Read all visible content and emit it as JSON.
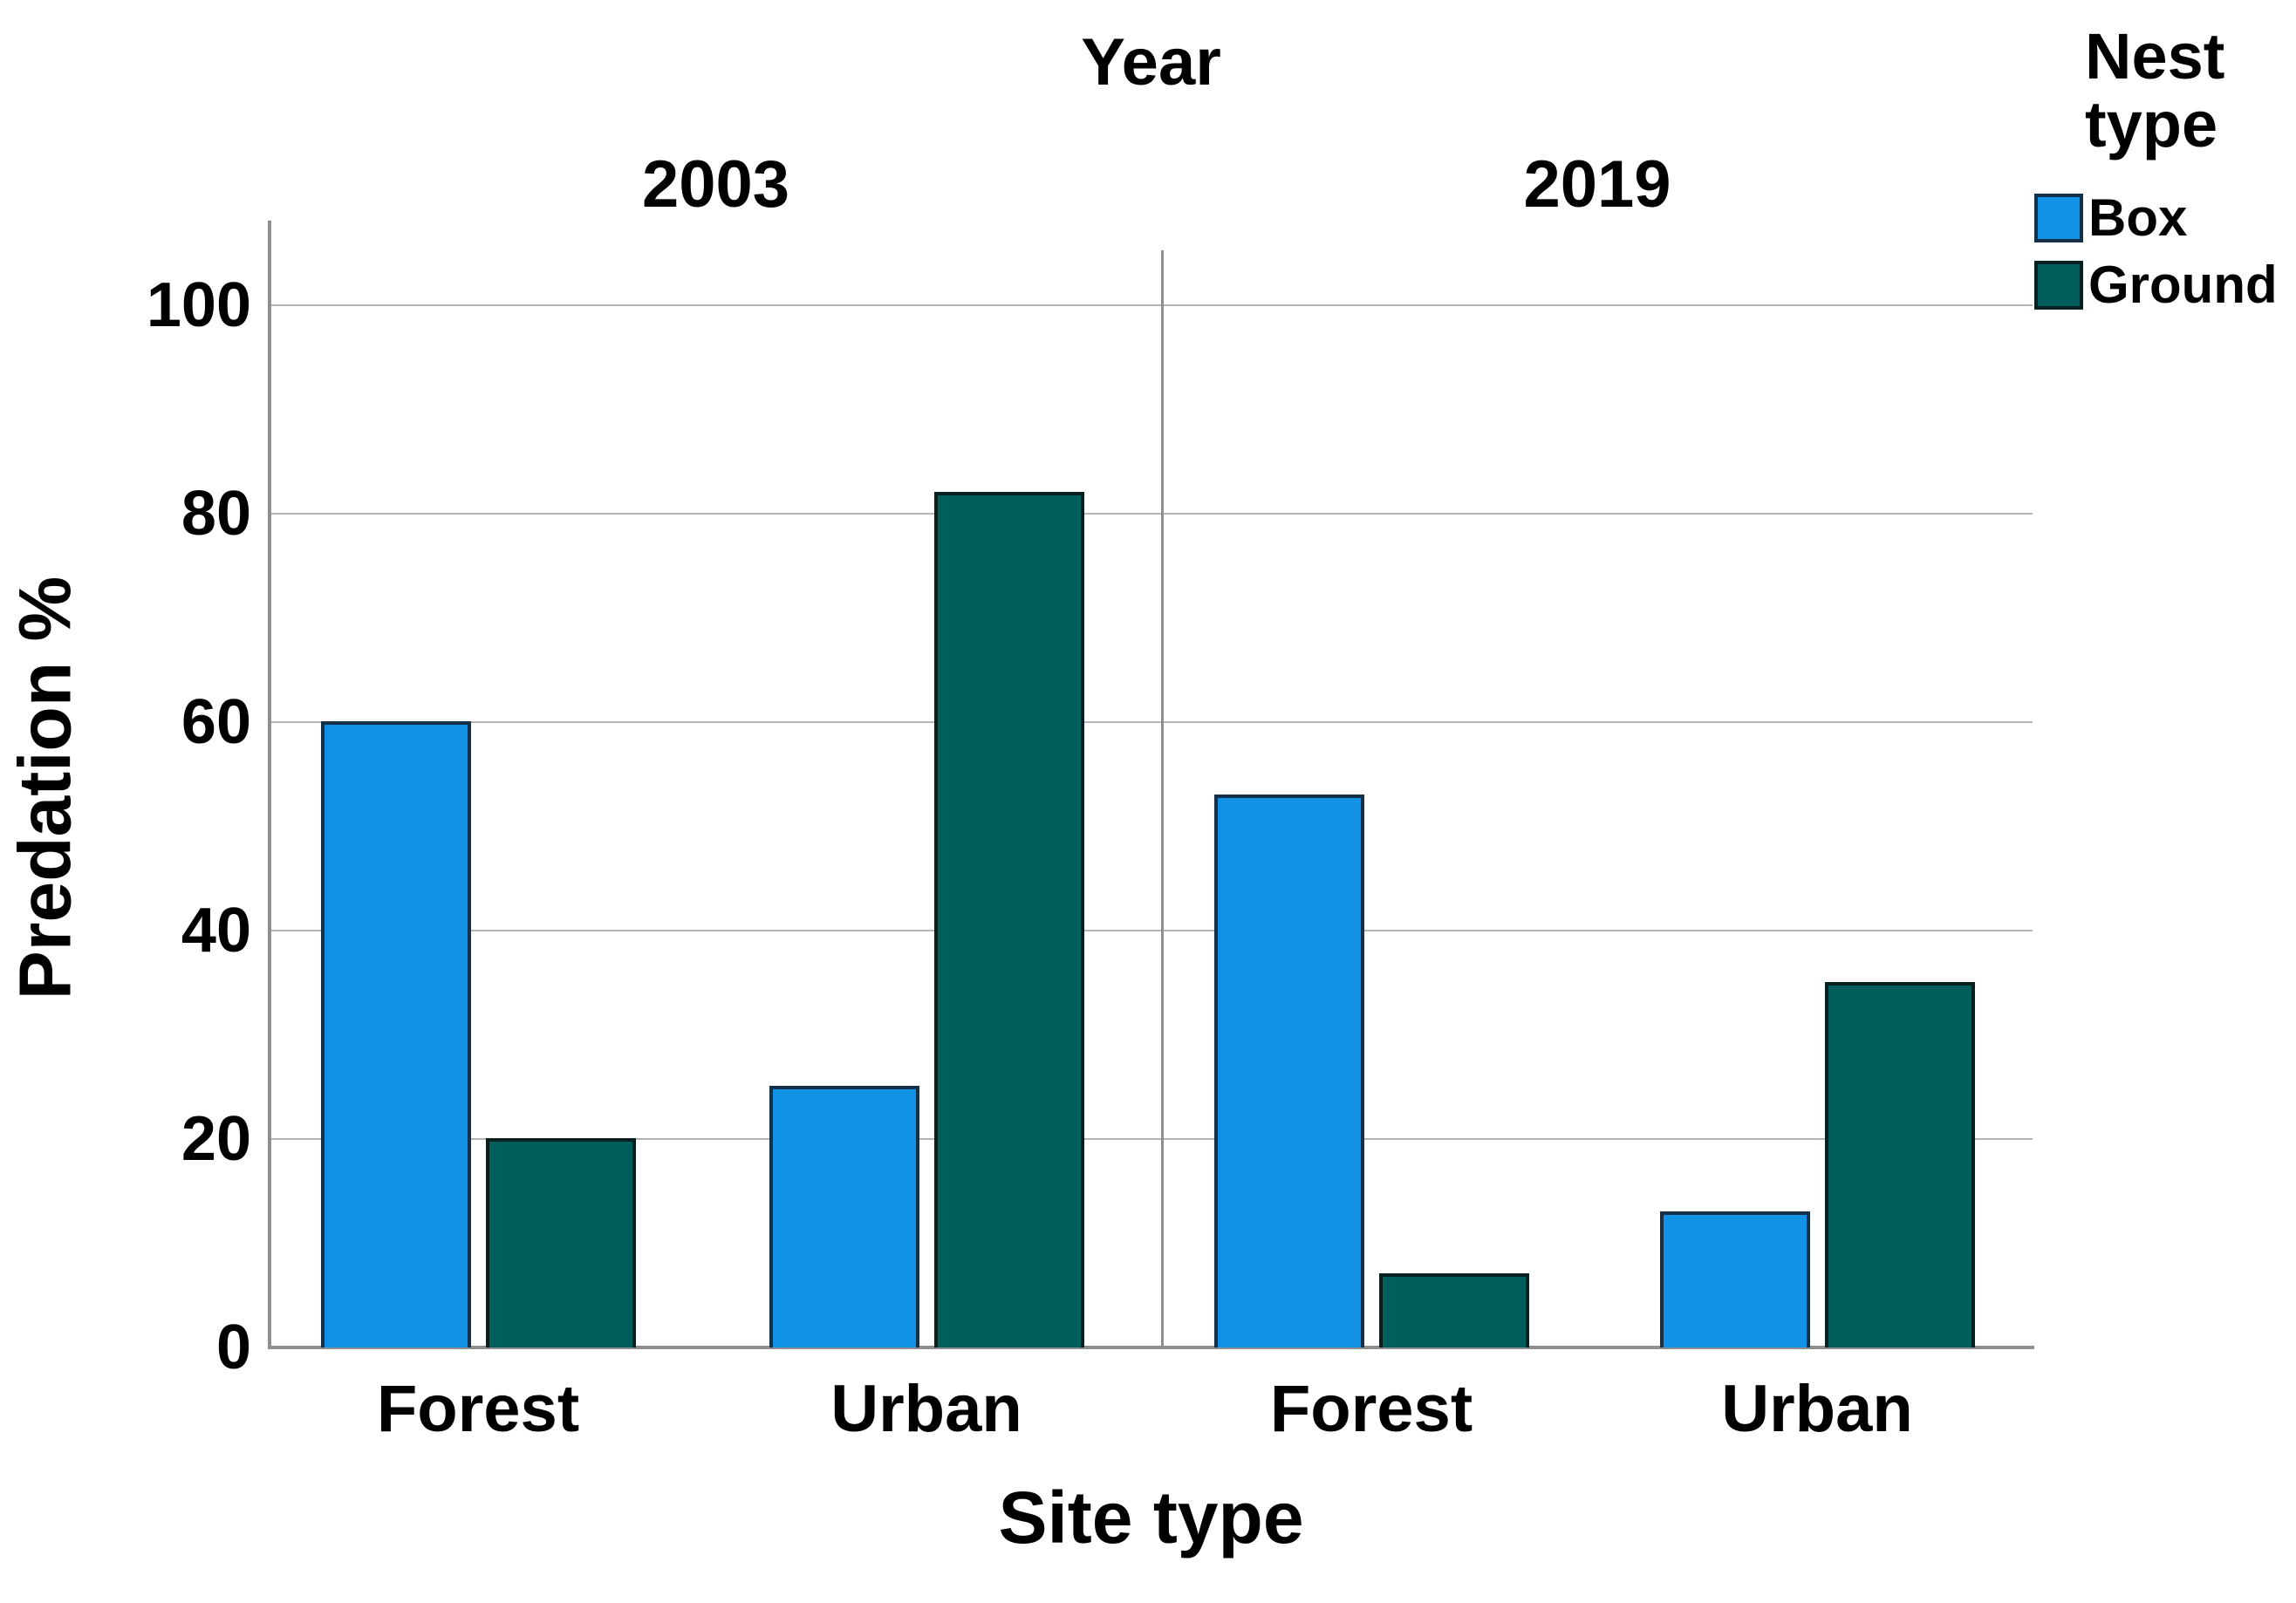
{
  "chart_data": {
    "type": "bar",
    "facet_title": "Year",
    "xlabel": "Site type",
    "ylabel": "Predation %",
    "ylim": [
      0,
      100
    ],
    "y_ticks": [
      0,
      20,
      40,
      60,
      80,
      100
    ],
    "grid": true,
    "legend_title": "Nest type",
    "legend_position": "top-right",
    "categories": [
      "Forest",
      "Urban"
    ],
    "panels": [
      {
        "label": "2003",
        "series": [
          {
            "name": "Box",
            "values": [
              60,
              25
            ]
          },
          {
            "name": "Ground",
            "values": [
              20,
              82
            ]
          }
        ]
      },
      {
        "label": "2019",
        "series": [
          {
            "name": "Box",
            "values": [
              53,
              13
            ]
          },
          {
            "name": "Ground",
            "values": [
              7,
              35
            ]
          }
        ]
      }
    ],
    "series_colors": {
      "Box": "#1292E5",
      "Ground": "#005F5C"
    },
    "series_border_colors": {
      "Box": "#17304A",
      "Ground": "#0A1F1F"
    },
    "gridline_color": "#b5b5b5",
    "axis_color": "#8f8f8f",
    "text_color": "#000000"
  }
}
